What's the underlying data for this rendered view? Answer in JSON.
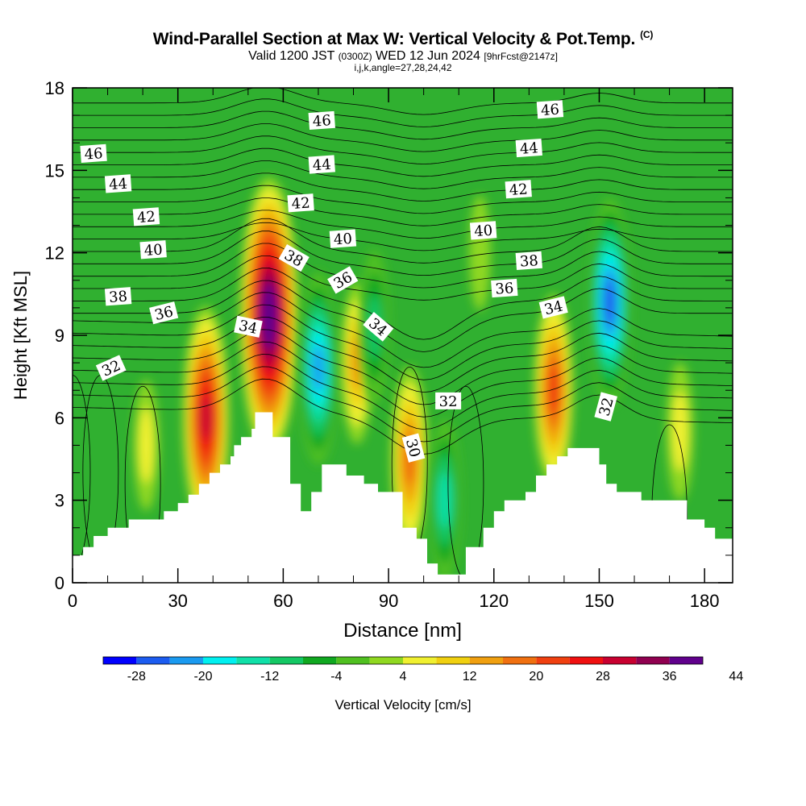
{
  "title": "Wind-Parallel Section at Max W: Vertical Velocity & Pot.Temp.",
  "title_tag": "(C)",
  "subtitle_main": "Valid 1200 JST",
  "subtitle_zulu": "(0300Z)",
  "subtitle_date": "WED 12 Jun 2024",
  "subtitle_fcst": "[9hrFcst@2147z]",
  "subsub": "i,j,k,angle=27,28,24,42",
  "colorbar_label": "Vertical Velocity [cm/s]",
  "colorbar_ticks": [
    "-28",
    "-20",
    "-12",
    "-4",
    "4",
    "12",
    "20",
    "28",
    "36",
    "44"
  ],
  "colors": {
    "levels": [
      "#0000ff",
      "#1c5cf0",
      "#1a9af0",
      "#00f0f0",
      "#10e0a8",
      "#14c864",
      "#10a820",
      "#50c020",
      "#90d820",
      "#f0f030",
      "#f0d010",
      "#f0a010",
      "#f07010",
      "#f04010",
      "#f01010",
      "#c80030",
      "#900050",
      "#60008c"
    ],
    "background": "#30b030"
  },
  "chart_data": {
    "type": "heatmap",
    "xlabel": "Distance [nm]",
    "ylabel": "Height [Kft MSL]",
    "xlim": [
      0,
      188
    ],
    "ylim": [
      0,
      18
    ],
    "x_ticks": [
      "0",
      "30",
      "60",
      "90",
      "120",
      "150",
      "180"
    ],
    "y_ticks": [
      "0",
      "3",
      "6",
      "9",
      "12",
      "15",
      "18"
    ],
    "terrain": [
      [
        0,
        1.0
      ],
      [
        3,
        1.0
      ],
      [
        3,
        1.3
      ],
      [
        6,
        1.3
      ],
      [
        6,
        1.7
      ],
      [
        10,
        1.7
      ],
      [
        10,
        2.0
      ],
      [
        16,
        2.0
      ],
      [
        16,
        2.3
      ],
      [
        26,
        2.3
      ],
      [
        26,
        2.6
      ],
      [
        30,
        2.6
      ],
      [
        30,
        2.9
      ],
      [
        33,
        2.9
      ],
      [
        33,
        3.2
      ],
      [
        36,
        3.2
      ],
      [
        36,
        3.6
      ],
      [
        39,
        3.6
      ],
      [
        39,
        4.0
      ],
      [
        42,
        4.0
      ],
      [
        42,
        4.3
      ],
      [
        45,
        4.3
      ],
      [
        45,
        4.6
      ],
      [
        46,
        4.6
      ],
      [
        46,
        5.0
      ],
      [
        48,
        5.0
      ],
      [
        48,
        5.3
      ],
      [
        51,
        5.3
      ],
      [
        51,
        5.6
      ],
      [
        52,
        5.6
      ],
      [
        52,
        6.2
      ],
      [
        57,
        6.2
      ],
      [
        57,
        5.3
      ],
      [
        62,
        5.3
      ],
      [
        62,
        3.6
      ],
      [
        65,
        3.6
      ],
      [
        65,
        2.6
      ],
      [
        68,
        2.6
      ],
      [
        68,
        3.3
      ],
      [
        71,
        3.3
      ],
      [
        71,
        4.3
      ],
      [
        78,
        4.3
      ],
      [
        78,
        3.9
      ],
      [
        83,
        3.9
      ],
      [
        83,
        3.6
      ],
      [
        87,
        3.6
      ],
      [
        87,
        3.3
      ],
      [
        94,
        3.3
      ],
      [
        94,
        2.0
      ],
      [
        98,
        2.0
      ],
      [
        98,
        1.6
      ],
      [
        101,
        1.6
      ],
      [
        101,
        0.7
      ],
      [
        104,
        0.7
      ],
      [
        104,
        0.3
      ],
      [
        112,
        0.3
      ],
      [
        112,
        1.3
      ],
      [
        117,
        1.3
      ],
      [
        117,
        2.0
      ],
      [
        120,
        2.0
      ],
      [
        120,
        2.6
      ],
      [
        123,
        2.6
      ],
      [
        123,
        3.0
      ],
      [
        129,
        3.0
      ],
      [
        129,
        3.3
      ],
      [
        132,
        3.3
      ],
      [
        132,
        3.9
      ],
      [
        135,
        3.9
      ],
      [
        135,
        4.3
      ],
      [
        138,
        4.3
      ],
      [
        138,
        4.6
      ],
      [
        141,
        4.6
      ],
      [
        141,
        4.9
      ],
      [
        150,
        4.9
      ],
      [
        150,
        4.3
      ],
      [
        152,
        4.3
      ],
      [
        152,
        3.6
      ],
      [
        155,
        3.6
      ],
      [
        155,
        3.3
      ],
      [
        162,
        3.3
      ],
      [
        162,
        3.0
      ],
      [
        175,
        3.0
      ],
      [
        175,
        2.3
      ],
      [
        180,
        2.3
      ],
      [
        180,
        2.0
      ],
      [
        183,
        2.0
      ],
      [
        183,
        1.6
      ],
      [
        188,
        1.6
      ]
    ],
    "w_features": [
      {
        "x": 56,
        "y": 9.7,
        "w": 44
      },
      {
        "x": 38,
        "y": 6.0,
        "w": 30
      },
      {
        "x": 70,
        "y": 7.8,
        "w": -22
      },
      {
        "x": 81,
        "y": 8.0,
        "w": 14
      },
      {
        "x": 86,
        "y": 9.3,
        "w": -12
      },
      {
        "x": 96,
        "y": 4.5,
        "w": 20
      },
      {
        "x": 106,
        "y": 3.0,
        "w": -14
      },
      {
        "x": 137,
        "y": 7.0,
        "w": 22
      },
      {
        "x": 153,
        "y": 10.2,
        "w": -26
      },
      {
        "x": 21,
        "y": 5.0,
        "w": 6
      },
      {
        "x": 173,
        "y": 5.5,
        "w": 8
      },
      {
        "x": 116,
        "y": 12.0,
        "w": 2
      }
    ],
    "theta_labels": [
      {
        "text": "46",
        "x": 6,
        "y": 15.6
      },
      {
        "text": "44",
        "x": 13,
        "y": 14.5
      },
      {
        "text": "42",
        "x": 21,
        "y": 13.3
      },
      {
        "text": "40",
        "x": 23,
        "y": 12.1
      },
      {
        "text": "38",
        "x": 13,
        "y": 10.4
      },
      {
        "text": "36",
        "x": 26,
        "y": 9.8
      },
      {
        "text": "32",
        "x": 11,
        "y": 7.8
      },
      {
        "text": "34",
        "x": 50,
        "y": 9.3
      },
      {
        "text": "38",
        "x": 63,
        "y": 11.8
      },
      {
        "text": "36",
        "x": 77,
        "y": 11.0
      },
      {
        "text": "34",
        "x": 87,
        "y": 9.3
      },
      {
        "text": "46",
        "x": 71,
        "y": 16.8
      },
      {
        "text": "44",
        "x": 71,
        "y": 15.2
      },
      {
        "text": "42",
        "x": 65,
        "y": 13.8
      },
      {
        "text": "40",
        "x": 77,
        "y": 12.5
      },
      {
        "text": "32",
        "x": 107,
        "y": 6.6
      },
      {
        "text": "30",
        "x": 97,
        "y": 4.9
      },
      {
        "text": "46",
        "x": 136,
        "y": 17.2
      },
      {
        "text": "44",
        "x": 130,
        "y": 15.8
      },
      {
        "text": "42",
        "x": 127,
        "y": 14.3
      },
      {
        "text": "40",
        "x": 117,
        "y": 12.8
      },
      {
        "text": "38",
        "x": 130,
        "y": 11.7
      },
      {
        "text": "36",
        "x": 123,
        "y": 10.7
      },
      {
        "text": "34",
        "x": 137,
        "y": 10.0
      },
      {
        "text": "32",
        "x": 152,
        "y": 6.4
      }
    ],
    "theta_label_angles": [
      -4,
      -4,
      -4,
      -4,
      -4,
      -14,
      -24,
      12,
      30,
      -30,
      40,
      -4,
      -4,
      -4,
      -4,
      0,
      75,
      -4,
      -4,
      -4,
      -4,
      -4,
      -4,
      -14,
      -75
    ],
    "grid": false
  }
}
